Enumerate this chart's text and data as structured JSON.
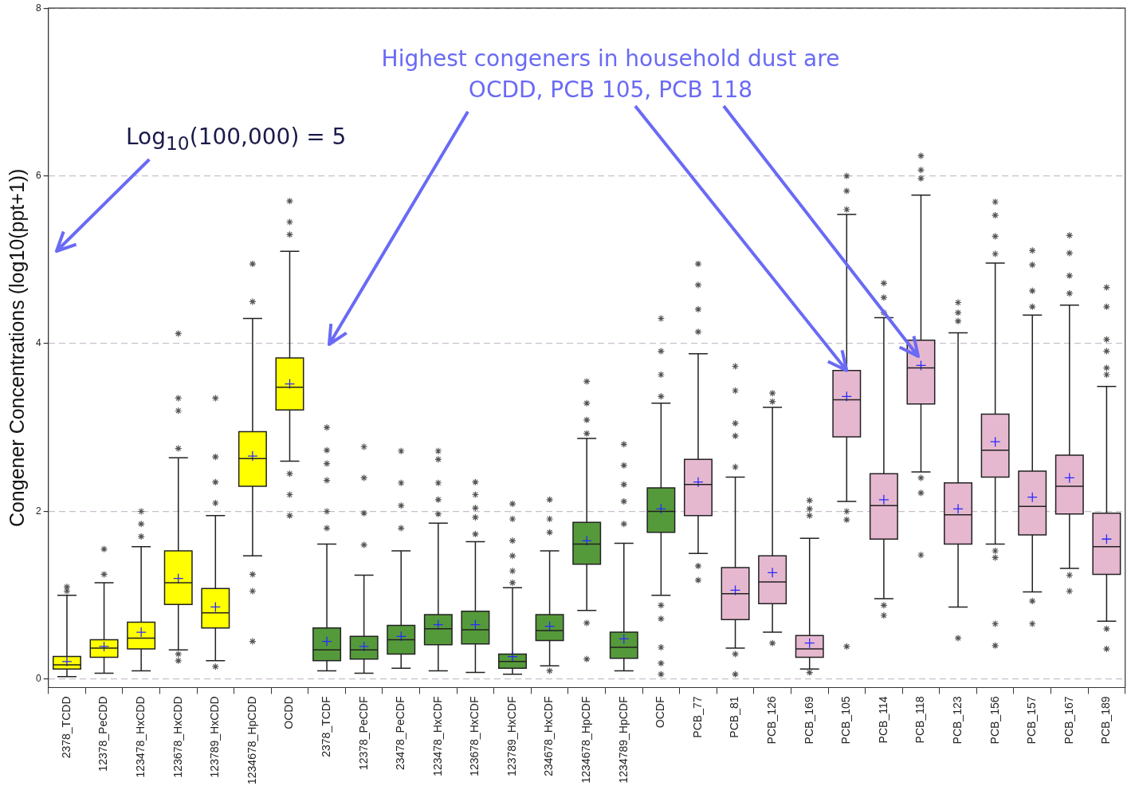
{
  "chart_data": {
    "type": "box",
    "ylabel": "Congener Concentrations (log10(ppt+1))",
    "ylim": [
      -0.1,
      8
    ],
    "yticks": [
      0,
      2,
      4,
      6,
      8
    ],
    "grid": "y",
    "categories": [
      "2378_TCDD",
      "12378_PeCDD",
      "123478_HxCDD",
      "123678_HxCDD",
      "123789_HxCDD",
      "1234678_HpCDD",
      "OCDD",
      "2378_TCDF",
      "12378_PeCDF",
      "23478_PeCDF",
      "123478_HxCDF",
      "123678_HxCDF",
      "123789_HxCDF",
      "234678_HxCDF",
      "1234678_HpCDF",
      "1234789_HpCDF",
      "OCDF",
      "PCB_77",
      "PCB_81",
      "PCB_126",
      "PCB_169",
      "PCB_105",
      "PCB_114",
      "PCB_118",
      "PCB_123",
      "PCB_156",
      "PCB_157",
      "PCB_167",
      "PCB_189"
    ],
    "colors": [
      "#ffff00",
      "#ffff00",
      "#ffff00",
      "#ffff00",
      "#ffff00",
      "#ffff00",
      "#ffff00",
      "#559a3a",
      "#559a3a",
      "#559a3a",
      "#559a3a",
      "#559a3a",
      "#559a3a",
      "#559a3a",
      "#559a3a",
      "#559a3a",
      "#559a3a",
      "#e6b8cf",
      "#e6b8cf",
      "#e6b8cf",
      "#e6b8cf",
      "#e6b8cf",
      "#e6b8cf",
      "#e6b8cf",
      "#e6b8cf",
      "#e6b8cf",
      "#e6b8cf",
      "#e6b8cf",
      "#e6b8cf"
    ],
    "boxes": [
      {
        "low": 0.03,
        "q1": 0.12,
        "median": 0.17,
        "q3": 0.27,
        "high": 1.0,
        "mean": 0.21,
        "outliers": [
          1.05,
          1.1
        ]
      },
      {
        "low": 0.07,
        "q1": 0.26,
        "median": 0.37,
        "q3": 0.47,
        "high": 1.15,
        "mean": 0.39,
        "outliers": [
          1.25,
          1.55
        ]
      },
      {
        "low": 0.1,
        "q1": 0.36,
        "median": 0.49,
        "q3": 0.68,
        "high": 1.58,
        "mean": 0.56,
        "outliers": [
          1.7,
          1.85,
          2.0
        ]
      },
      {
        "low": 0.35,
        "q1": 0.89,
        "median": 1.15,
        "q3": 1.53,
        "high": 2.64,
        "mean": 1.2,
        "outliers": [
          2.75,
          3.2,
          3.35,
          4.12,
          0.3,
          0.22
        ]
      },
      {
        "low": 0.22,
        "q1": 0.61,
        "median": 0.79,
        "q3": 1.08,
        "high": 1.95,
        "mean": 0.86,
        "outliers": [
          2.1,
          2.35,
          2.65,
          3.35,
          0.15
        ]
      },
      {
        "low": 1.47,
        "q1": 2.3,
        "median": 2.63,
        "q3": 2.95,
        "high": 4.3,
        "mean": 2.66,
        "outliers": [
          4.5,
          4.95,
          1.25,
          1.05,
          0.45
        ]
      },
      {
        "low": 2.6,
        "q1": 3.21,
        "median": 3.48,
        "q3": 3.83,
        "high": 5.1,
        "mean": 3.52,
        "outliers": [
          5.3,
          5.45,
          5.7,
          2.45,
          2.2,
          1.95
        ]
      },
      {
        "low": 0.1,
        "q1": 0.22,
        "median": 0.35,
        "q3": 0.61,
        "high": 1.61,
        "mean": 0.45,
        "outliers": [
          3.0,
          2.73,
          2.57,
          2.37,
          2.0,
          1.8
        ]
      },
      {
        "low": 0.07,
        "q1": 0.24,
        "median": 0.35,
        "q3": 0.51,
        "high": 1.24,
        "mean": 0.39,
        "outliers": [
          2.77,
          2.4,
          1.98,
          1.6
        ]
      },
      {
        "low": 0.13,
        "q1": 0.3,
        "median": 0.47,
        "q3": 0.64,
        "high": 1.53,
        "mean": 0.51,
        "outliers": [
          2.72,
          2.34,
          2.07,
          1.8
        ]
      },
      {
        "low": 0.1,
        "q1": 0.41,
        "median": 0.6,
        "q3": 0.77,
        "high": 1.86,
        "mean": 0.65,
        "outliers": [
          2.72,
          2.62,
          2.34,
          2.14,
          1.97
        ]
      },
      {
        "low": 0.08,
        "q1": 0.42,
        "median": 0.59,
        "q3": 0.81,
        "high": 1.64,
        "mean": 0.65,
        "outliers": [
          2.35,
          2.2,
          2.04,
          1.93,
          1.73
        ]
      },
      {
        "low": 0.06,
        "q1": 0.13,
        "median": 0.21,
        "q3": 0.3,
        "high": 1.09,
        "mean": 0.27,
        "outliers": [
          2.09,
          1.91,
          1.65,
          1.47,
          1.29,
          1.15
        ]
      },
      {
        "low": 0.16,
        "q1": 0.46,
        "median": 0.58,
        "q3": 0.77,
        "high": 1.53,
        "mean": 0.63,
        "outliers": [
          2.14,
          1.91,
          1.75,
          0.1
        ]
      },
      {
        "low": 0.82,
        "q1": 1.37,
        "median": 1.61,
        "q3": 1.87,
        "high": 2.87,
        "mean": 1.65,
        "outliers": [
          3.55,
          3.29,
          3.09,
          2.93,
          0.67,
          0.24
        ]
      },
      {
        "low": 0.1,
        "q1": 0.25,
        "median": 0.38,
        "q3": 0.56,
        "high": 1.62,
        "mean": 0.48,
        "outliers": [
          2.8,
          2.55,
          2.32,
          2.12,
          1.85
        ]
      },
      {
        "low": 1.0,
        "q1": 1.75,
        "median": 2.0,
        "q3": 2.28,
        "high": 3.29,
        "mean": 2.03,
        "outliers": [
          4.3,
          3.91,
          3.63,
          3.37,
          0.88,
          0.72,
          0.38,
          0.19,
          0.06
        ]
      },
      {
        "low": 1.5,
        "q1": 1.95,
        "median": 2.32,
        "q3": 2.62,
        "high": 3.88,
        "mean": 2.35,
        "outliers": [
          4.95,
          4.7,
          4.41,
          4.14,
          1.35,
          1.18
        ]
      },
      {
        "low": 0.37,
        "q1": 0.71,
        "median": 1.02,
        "q3": 1.33,
        "high": 2.41,
        "mean": 1.06,
        "outliers": [
          3.73,
          3.44,
          3.05,
          2.9,
          2.53,
          0.3,
          0.06
        ]
      },
      {
        "low": 0.56,
        "q1": 0.9,
        "median": 1.16,
        "q3": 1.47,
        "high": 3.24,
        "mean": 1.27,
        "outliers": [
          3.41,
          3.31,
          0.43
        ]
      },
      {
        "low": 0.12,
        "q1": 0.26,
        "median": 0.36,
        "q3": 0.52,
        "high": 1.68,
        "mean": 0.43,
        "outliers": [
          2.13,
          2.03,
          1.95,
          0.08
        ]
      },
      {
        "low": 2.12,
        "q1": 2.89,
        "median": 3.33,
        "q3": 3.68,
        "high": 5.54,
        "mean": 3.37,
        "outliers": [
          6.0,
          5.82,
          5.6,
          2.0,
          1.9,
          0.39
        ]
      },
      {
        "low": 0.96,
        "q1": 1.67,
        "median": 2.07,
        "q3": 2.45,
        "high": 4.31,
        "mean": 2.14,
        "outliers": [
          4.72,
          4.55,
          4.37,
          0.88,
          0.76
        ]
      },
      {
        "low": 2.47,
        "q1": 3.28,
        "median": 3.71,
        "q3": 4.04,
        "high": 5.77,
        "mean": 3.74,
        "outliers": [
          6.24,
          6.07,
          5.97,
          2.4,
          2.22,
          1.48
        ]
      },
      {
        "low": 0.86,
        "q1": 1.61,
        "median": 1.96,
        "q3": 2.34,
        "high": 4.13,
        "mean": 2.03,
        "outliers": [
          4.49,
          4.37,
          4.27,
          0.49
        ]
      },
      {
        "low": 1.61,
        "q1": 2.41,
        "median": 2.73,
        "q3": 3.16,
        "high": 4.96,
        "mean": 2.83,
        "outliers": [
          5.69,
          5.53,
          5.28,
          5.07,
          1.53,
          1.45,
          0.66,
          0.4
        ]
      },
      {
        "low": 1.04,
        "q1": 1.72,
        "median": 2.06,
        "q3": 2.48,
        "high": 4.34,
        "mean": 2.17,
        "outliers": [
          5.11,
          4.94,
          4.63,
          4.44,
          0.93,
          0.66
        ]
      },
      {
        "low": 1.32,
        "q1": 1.97,
        "median": 2.3,
        "q3": 2.67,
        "high": 4.46,
        "mean": 2.4,
        "outliers": [
          5.29,
          5.08,
          4.81,
          4.6,
          1.24,
          1.05
        ]
      },
      {
        "low": 0.69,
        "q1": 1.25,
        "median": 1.58,
        "q3": 1.98,
        "high": 3.49,
        "mean": 1.67,
        "outliers": [
          4.67,
          4.44,
          4.05,
          3.91,
          3.71,
          3.63,
          0.6,
          0.36
        ]
      }
    ],
    "annotations": [
      "Log$_{10}$(100,000) = 5",
      {
        "text": "Highest congeners in household dust are OCDD, PCB 105, PCB 118",
        "x": "PCB_105",
        "y": 3.68
      }
    ]
  }
}
